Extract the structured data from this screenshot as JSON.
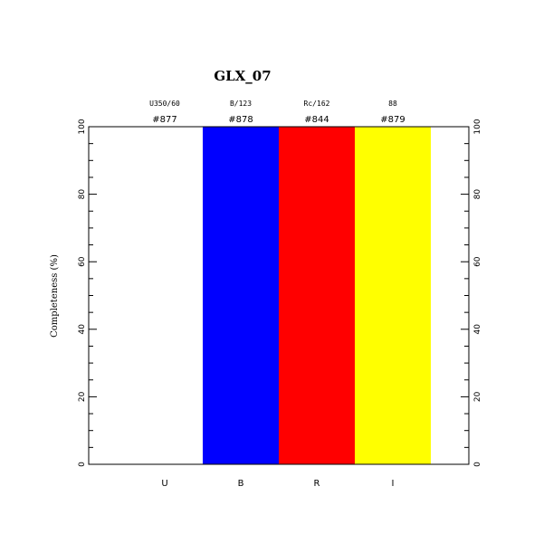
{
  "chart_data": {
    "type": "bar",
    "title": "GLX_07",
    "ylabel": "Completeness (%)",
    "xlabel": "",
    "ylim": [
      0,
      100
    ],
    "yticks": [
      "0",
      "20",
      "40",
      "60",
      "80",
      "100"
    ],
    "categories": [
      "U",
      "B",
      "R",
      "I"
    ],
    "filters": [
      "U350/60",
      "B/123",
      "Rc/162",
      "88"
    ],
    "ids": [
      "#877",
      "#878",
      "#844",
      "#879"
    ],
    "values": [
      0,
      100,
      100,
      100
    ],
    "colors": [
      "#ffffff",
      "#0000ff",
      "#ff0000",
      "#ffff00"
    ],
    "grid": false,
    "legend": "none"
  }
}
